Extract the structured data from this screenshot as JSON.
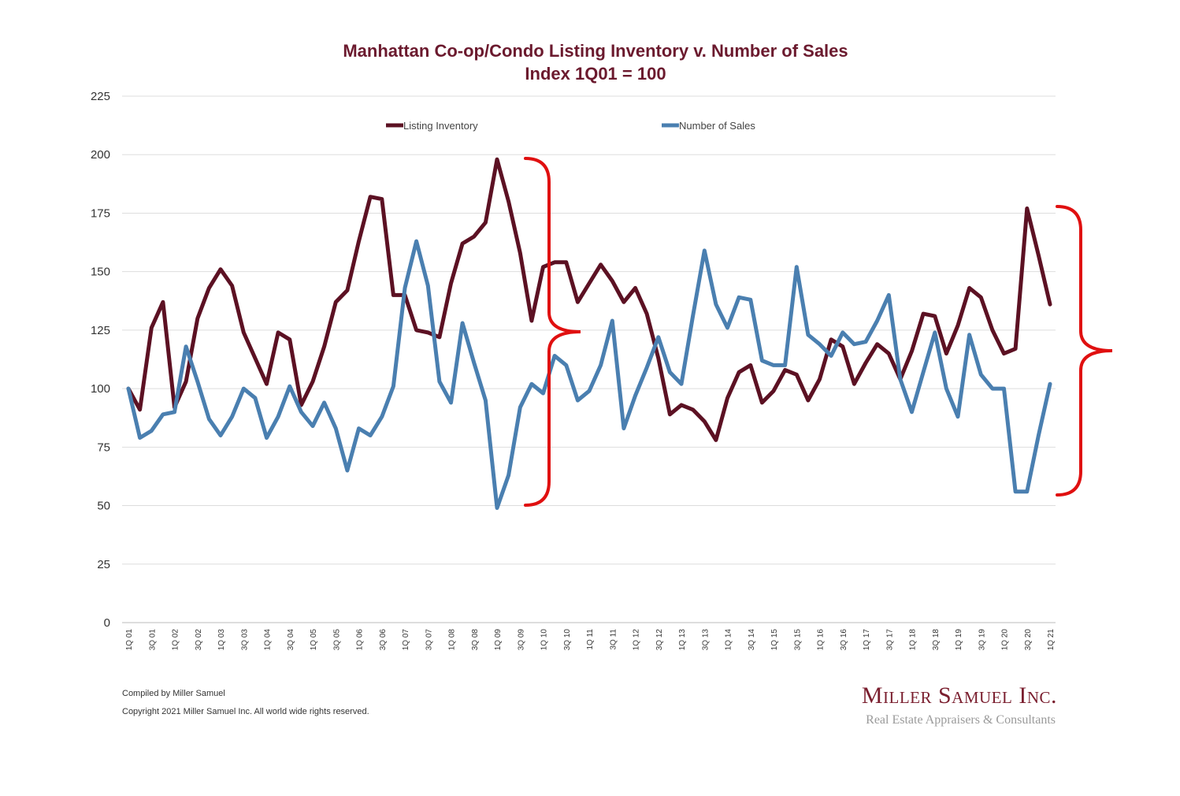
{
  "chart_data": {
    "type": "line",
    "title": "Manhattan Co-op/Condo Listing Inventory v. Number of Sales",
    "subtitle": "Index 1Q01 = 100",
    "ylim": [
      0,
      225
    ],
    "yticks": [
      0,
      25,
      50,
      75,
      100,
      125,
      150,
      175,
      200,
      225
    ],
    "grid": true,
    "legend_position": "top",
    "x": [
      "1Q01",
      "2Q01",
      "3Q01",
      "4Q01",
      "1Q02",
      "2Q02",
      "3Q02",
      "4Q02",
      "1Q03",
      "2Q03",
      "3Q03",
      "4Q03",
      "1Q04",
      "2Q04",
      "3Q04",
      "4Q04",
      "1Q05",
      "2Q05",
      "3Q05",
      "4Q05",
      "1Q06",
      "2Q06",
      "3Q06",
      "4Q06",
      "1Q07",
      "2Q07",
      "3Q07",
      "4Q07",
      "1Q08",
      "2Q08",
      "3Q08",
      "4Q08",
      "1Q09",
      "2Q09",
      "3Q09",
      "4Q09",
      "1Q10",
      "2Q10",
      "3Q10",
      "4Q10",
      "1Q11",
      "2Q11",
      "3Q11",
      "4Q11",
      "1Q12",
      "2Q12",
      "3Q12",
      "4Q12",
      "1Q13",
      "2Q13",
      "3Q13",
      "4Q13",
      "1Q14",
      "2Q14",
      "3Q14",
      "4Q14",
      "1Q15",
      "2Q15",
      "3Q15",
      "4Q15",
      "1Q16",
      "2Q16",
      "3Q16",
      "4Q16",
      "1Q17",
      "2Q17",
      "3Q17",
      "4Q17",
      "1Q18",
      "2Q18",
      "3Q18",
      "4Q18",
      "1Q19",
      "2Q19",
      "3Q19",
      "4Q19",
      "1Q20",
      "2Q20",
      "3Q20",
      "4Q20",
      "1Q21"
    ],
    "tick_labels": [
      "1Q 01",
      "3Q 01",
      "1Q 02",
      "3Q 02",
      "1Q 03",
      "3Q 03",
      "1Q 04",
      "3Q 04",
      "1Q 05",
      "3Q 05",
      "1Q 06",
      "3Q 06",
      "1Q 07",
      "3Q 07",
      "1Q 08",
      "3Q 08",
      "1Q 09",
      "3Q 09",
      "1Q 10",
      "3Q 10",
      "1Q 11",
      "3Q 11",
      "1Q 12",
      "3Q 12",
      "1Q 13",
      "3Q 13",
      "1Q 14",
      "3Q 14",
      "1Q 15",
      "3Q 15",
      "1Q 16",
      "3Q 16",
      "1Q 17",
      "3Q 17",
      "1Q 18",
      "3Q 18",
      "1Q 19",
      "3Q 19",
      "1Q 20",
      "3Q 20",
      "1Q 21"
    ],
    "series": [
      {
        "name": "Listing Inventory",
        "color": "#5c1123",
        "values": [
          100,
          91,
          126,
          137,
          92,
          103,
          130,
          143,
          151,
          144,
          124,
          113,
          102,
          124,
          121,
          93,
          103,
          118,
          137,
          142,
          163,
          182,
          181,
          140,
          140,
          125,
          124,
          122,
          145,
          162,
          165,
          171,
          198,
          180,
          158,
          129,
          152,
          154,
          154,
          137,
          145,
          153,
          146,
          137,
          143,
          132,
          113,
          89,
          93,
          91,
          86,
          78,
          96,
          107,
          110,
          94,
          99,
          108,
          106,
          95,
          104,
          121,
          118,
          102,
          111,
          119,
          115,
          104,
          116,
          132,
          131,
          115,
          127,
          143,
          139,
          125,
          115,
          117,
          177,
          157,
          136
        ]
      },
      {
        "name": "Number of Sales",
        "color": "#4a7fb0",
        "values": [
          100,
          79,
          82,
          89,
          90,
          118,
          103,
          87,
          80,
          88,
          100,
          96,
          79,
          88,
          101,
          90,
          84,
          94,
          83,
          65,
          83,
          80,
          88,
          101,
          143,
          163,
          144,
          103,
          94,
          128,
          111,
          95,
          49,
          63,
          92,
          102,
          98,
          114,
          110,
          95,
          99,
          110,
          129,
          83,
          97,
          109,
          122,
          107,
          102,
          131,
          159,
          136,
          126,
          139,
          138,
          112,
          110,
          110,
          152,
          123,
          119,
          114,
          124,
          119,
          120,
          129,
          140,
          104,
          90,
          107,
          124,
          100,
          88,
          123,
          106,
          100,
          100,
          56,
          56,
          80,
          102
        ]
      }
    ]
  },
  "credits": {
    "compiled": "Compiled by Miller Samuel",
    "copyright": "Copyright 2021 Miller Samuel Inc.  All world wide rights reserved."
  },
  "brand": {
    "name": "Miller Samuel Inc.",
    "tagline": "Real Estate Appraisers & Consultants"
  },
  "annotation_color": "#e01010"
}
